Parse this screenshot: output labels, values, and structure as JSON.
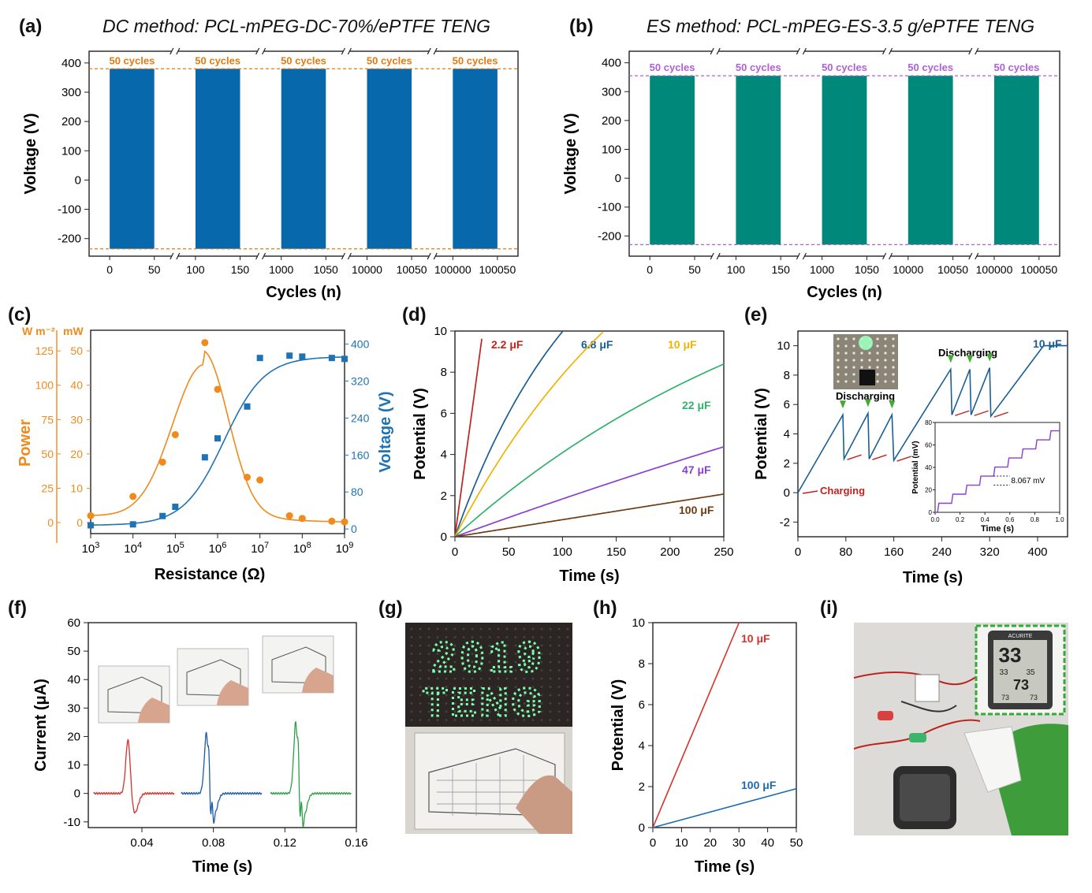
{
  "panels": {
    "a": {
      "letter": "(a)",
      "title": "DC method: PCL-mPEG-DC-70%/ePTFE TENG"
    },
    "b": {
      "letter": "(b)",
      "title": "ES method: PCL-mPEG-ES-3.5 g/ePTFE TENG"
    },
    "c": {
      "letter": "(c)"
    },
    "d": {
      "letter": "(d)"
    },
    "e": {
      "letter": "(e)"
    },
    "f": {
      "letter": "(f)"
    },
    "g": {
      "letter": "(g)"
    },
    "h": {
      "letter": "(h)"
    },
    "i": {
      "letter": "(i)"
    }
  },
  "colors": {
    "dc_bar": "#0868ac",
    "es_bar": "#00897b",
    "orange": "#f08a1c",
    "blue": "#1f73b4",
    "purple_label": "#b15ed8",
    "orange_label": "#e07b12",
    "red": "#c0221e"
  },
  "photos": {
    "g_text_top": "2019",
    "g_text_bottom": "TENG",
    "i_display": {
      "big": "33",
      "mid_left": "33",
      "mid_right": "35",
      "mid": "73",
      "low_left": "73",
      "low_right": "73",
      "brand": "ACURITE"
    }
  },
  "chart_data": [
    {
      "id": "a",
      "type": "bar",
      "categories": [
        "0-50",
        "100-150",
        "1000-1050",
        "10000-10050",
        "100000-100050"
      ],
      "tick_labels": [
        "0",
        "50",
        "100",
        "150",
        "1000",
        "1050",
        "10000",
        "10050",
        "100000",
        "100050"
      ],
      "series": [
        {
          "values_max": [
            380,
            380,
            380,
            380,
            380
          ],
          "values_min": [
            -235,
            -235,
            -235,
            -235,
            -235
          ]
        }
      ],
      "annotations": [
        "50 cycles",
        "50 cycles",
        "50 cycles",
        "50 cycles",
        "50 cycles"
      ],
      "xlabel": "Cycles (n)",
      "ylabel": "Voltage (V)",
      "yticks": [
        "400",
        "300",
        "200",
        "100",
        "0",
        "-100",
        "-200"
      ],
      "ylim": [
        -260,
        440
      ],
      "ref_lines": [
        380,
        -235
      ]
    },
    {
      "id": "b",
      "type": "bar",
      "categories": [
        "0-50",
        "100-150",
        "1000-1050",
        "10000-10050",
        "100000-100050"
      ],
      "tick_labels": [
        "0",
        "50",
        "100",
        "150",
        "1000",
        "1050",
        "10000",
        "10050",
        "100000",
        "100050"
      ],
      "series": [
        {
          "values_max": [
            355,
            355,
            355,
            355,
            355
          ],
          "values_min": [
            -230,
            -230,
            -230,
            -230,
            -230
          ]
        }
      ],
      "annotations": [
        "50 cycles",
        "50 cycles",
        "50 cycles",
        "50 cycles",
        "50 cycles"
      ],
      "xlabel": "Cycles (n)",
      "ylabel": "Voltage (V)",
      "yticks": [
        "400",
        "300",
        "200",
        "100",
        "0",
        "-100",
        "-200"
      ],
      "ylim": [
        -270,
        440
      ],
      "ref_lines": [
        355,
        -230
      ]
    },
    {
      "id": "c",
      "type": "scatter",
      "xlabel": "Resistance (Ω)",
      "xscale": "log",
      "xlim": [
        1000,
        1000000000
      ],
      "xticks": [
        "10^3",
        "10^4",
        "10^5",
        "10^6",
        "10^7",
        "10^8",
        "10^9"
      ],
      "y1_label": "Power",
      "y1_units": [
        "W m⁻²",
        "mW"
      ],
      "y1a_ticks": [
        "0",
        "25",
        "50",
        "75",
        "100",
        "125"
      ],
      "y1a_lim": [
        -8,
        140
      ],
      "y1b_ticks": [
        "0",
        "10",
        "20",
        "30",
        "40",
        "50"
      ],
      "y1b_lim": [
        -3.2,
        56
      ],
      "y2_label": "Voltage (V)",
      "y2_ticks": [
        "0",
        "80",
        "160",
        "240",
        "320",
        "400"
      ],
      "y2_lim": [
        -10,
        430
      ],
      "series": [
        {
          "name": "Power",
          "axis": "y1a",
          "x": [
            1000,
            10000,
            50000,
            100000,
            500000,
            1000000,
            5000000,
            10000000,
            50000000,
            100000000,
            500000000,
            1000000000
          ],
          "y": [
            5,
            19,
            44,
            64,
            131,
            97,
            33,
            31,
            5,
            3,
            1,
            0.5
          ]
        },
        {
          "name": "Voltage",
          "axis": "y2",
          "x": [
            1000,
            10000,
            50000,
            100000,
            500000,
            1000000,
            5000000,
            10000000,
            50000000,
            100000000,
            500000000,
            1000000000
          ],
          "y": [
            8,
            10,
            28,
            48,
            155,
            196,
            265,
            370,
            375,
            373,
            370,
            368
          ]
        }
      ]
    },
    {
      "id": "d",
      "type": "line",
      "xlabel": "Time (s)",
      "ylabel": "Potential (V)",
      "xlim": [
        0,
        250
      ],
      "ylim": [
        0,
        10
      ],
      "xticks": [
        "0",
        "50",
        "100",
        "150",
        "200",
        "250"
      ],
      "yticks": [
        "0",
        "2",
        "4",
        "6",
        "8",
        "10"
      ],
      "series": [
        {
          "name": "2.2 μF",
          "tau": 1000000000.0,
          "rate": 0.385
        },
        {
          "name": "6.8 μF",
          "tau": 120,
          "rate": 0.147
        },
        {
          "name": "10 μF",
          "tau": 200,
          "rate": 0.1
        },
        {
          "name": "22 μF",
          "tau": 350,
          "rate": 0.047
        },
        {
          "name": "47 μF",
          "tau": 1500,
          "rate": 0.019
        },
        {
          "name": "100 μF",
          "tau": 1000000000.0,
          "rate": 0.0083
        }
      ]
    },
    {
      "id": "e",
      "type": "line",
      "xlabel": "Time (s)",
      "ylabel": "Potential (V)",
      "xlim": [
        0,
        450
      ],
      "ylim": [
        -3,
        11
      ],
      "xticks": [
        "0",
        "80",
        "160",
        "240",
        "320",
        "400"
      ],
      "yticks": [
        "-2",
        "0",
        "2",
        "4",
        "6",
        "8",
        "10"
      ],
      "annotations": [
        "Charging",
        "Discharging",
        "Discharging",
        "10 μF"
      ],
      "inset": {
        "xlabel": "Time (s)",
        "ylabel": "Potential (mV)",
        "xlim": [
          0,
          1
        ],
        "ylim": [
          0,
          80
        ],
        "xticks": [
          "0.0",
          "0.2",
          "0.4",
          "0.6",
          "0.8",
          "1.0"
        ],
        "yticks": [
          "0",
          "20",
          "40",
          "60",
          "80"
        ],
        "step_label": "8.067 mV"
      }
    },
    {
      "id": "f",
      "type": "line",
      "xlabel": "Time (s)",
      "ylabel": "Current (μA)",
      "xlim": [
        0.01,
        0.16
      ],
      "ylim": [
        -12,
        60
      ],
      "xticks": [
        "0.04",
        "0.08",
        "0.12",
        "0.16"
      ],
      "yticks": [
        "-10",
        "0",
        "10",
        "20",
        "30",
        "40",
        "50",
        "60"
      ],
      "series": [
        {
          "peaks": [
            20,
            -7
          ],
          "center": 0.033
        },
        {
          "peaks": [
            23,
            -9
          ],
          "center": 0.077
        },
        {
          "peaks": [
            27,
            -10
          ],
          "center": 0.127
        }
      ]
    },
    {
      "id": "h",
      "type": "line",
      "xlabel": "Time (s)",
      "ylabel": "Potential (V)",
      "xlim": [
        0,
        50
      ],
      "ylim": [
        0,
        10
      ],
      "xticks": [
        "0",
        "10",
        "20",
        "30",
        "40",
        "50"
      ],
      "yticks": [
        "0",
        "2",
        "4",
        "6",
        "8",
        "10"
      ],
      "series": [
        {
          "name": "10 μF",
          "rate": 0.333
        },
        {
          "name": "100 μF",
          "rate": 0.038
        }
      ]
    }
  ]
}
